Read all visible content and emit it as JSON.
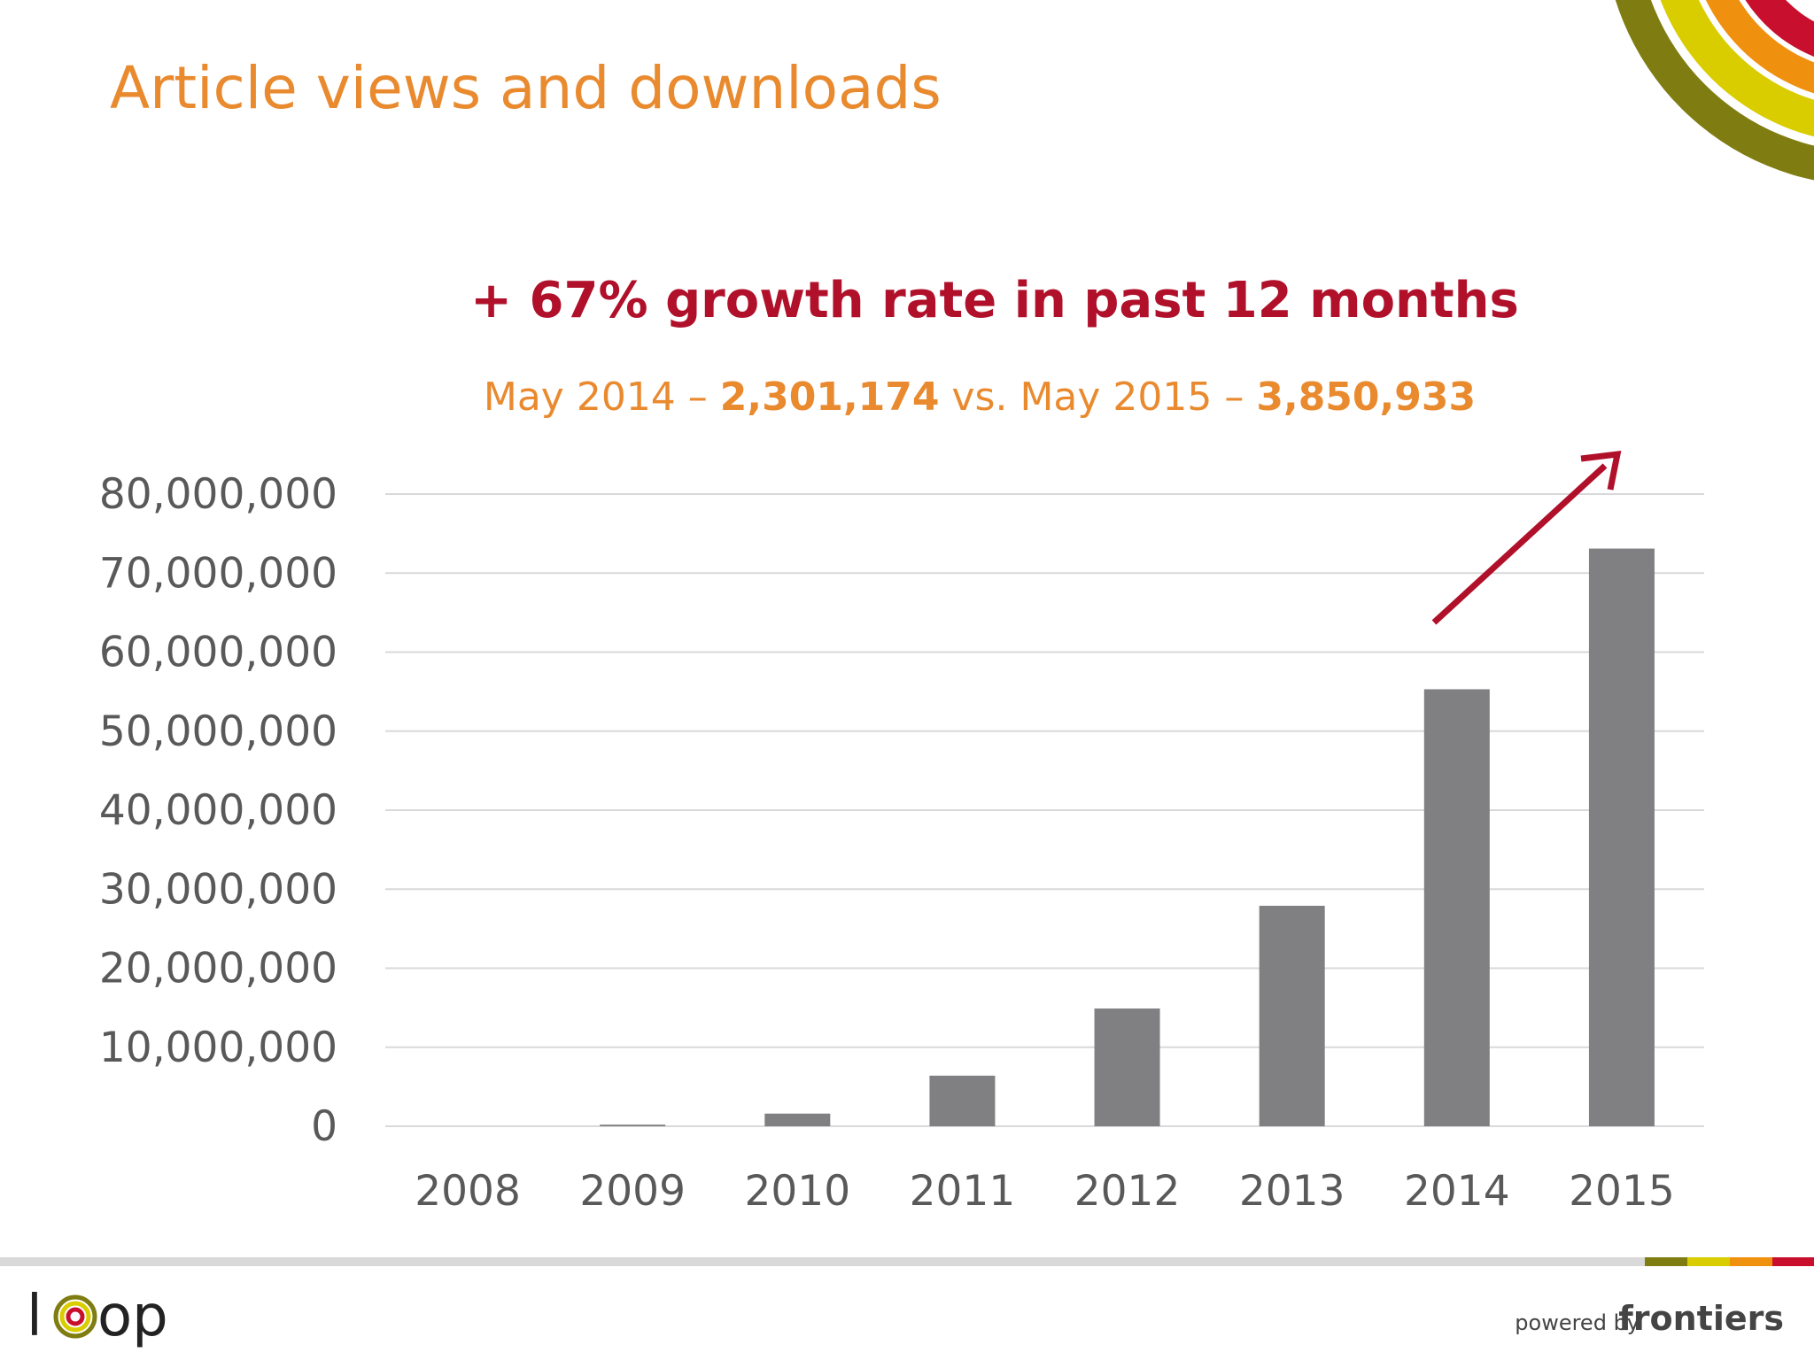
{
  "chart_data": {
    "type": "bar",
    "title": "Article views and downloads",
    "headline": "+ 67% growth rate in past 12 months",
    "subtitle": [
      "May 2014 – ",
      "2,301,174",
      " vs. May 2015 – ",
      "3,850,933"
    ],
    "categories": [
      "2008",
      "2009",
      "2010",
      "2011",
      "2012",
      "2013",
      "2014",
      "2015"
    ],
    "values": [
      0,
      200000,
      1600000,
      6400000,
      14900000,
      27900000,
      55300000,
      73100000
    ],
    "color": "#807f82",
    "ylim": [
      0,
      80000000
    ],
    "yticks": [
      0,
      {
        "value": 10000000,
        "label": "10,000,000"
      },
      {
        "value": 20000000,
        "label": "20,000,000"
      },
      {
        "value": 30000000,
        "label": "30,000,000"
      },
      {
        "value": 40000000,
        "label": "40,000,000"
      },
      {
        "value": 50000000,
        "label": "50,000,000"
      },
      {
        "value": 60000000,
        "label": "60,000,000"
      },
      {
        "value": 70000000,
        "label": "70,000,000"
      },
      {
        "value": 80000000,
        "label": "80,000,000"
      }
    ],
    "grid": true
  },
  "footer": {
    "logo_left": "l",
    "logo_right": "op",
    "powered": "powered by",
    "brand": "frontiers"
  }
}
